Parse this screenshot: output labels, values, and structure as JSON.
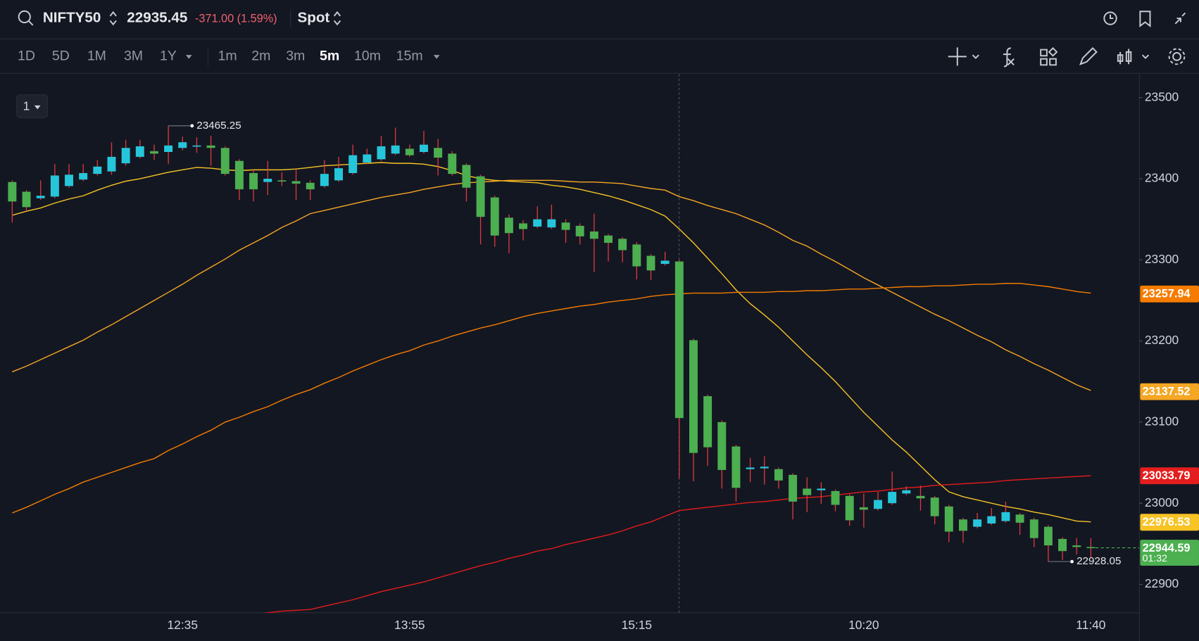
{
  "header": {
    "symbol": "NIFTY50",
    "price": "22935.45",
    "change": "-371.00 (1.59%)",
    "mode": "Spot"
  },
  "toolbar": {
    "ranges": [
      "1D",
      "5D",
      "1M",
      "3M",
      "1Y"
    ],
    "intervals": [
      "1m",
      "2m",
      "3m",
      "5m",
      "10m",
      "15m"
    ],
    "active": "5m"
  },
  "pane_label": "1",
  "chart_data": {
    "type": "candlestick",
    "categories": [
      null,
      null,
      null,
      null,
      null,
      null,
      null,
      null,
      null,
      null,
      null,
      null,
      "12:35",
      null,
      null,
      null,
      null,
      null,
      null,
      null,
      null,
      null,
      null,
      null,
      null,
      null,
      null,
      null,
      "13:55",
      null,
      null,
      null,
      null,
      null,
      null,
      null,
      null,
      null,
      null,
      null,
      null,
      null,
      null,
      null,
      "15:15",
      null,
      null,
      null,
      null,
      null,
      null,
      null,
      null,
      null,
      null,
      null,
      null,
      null,
      null,
      null,
      "10:20",
      null,
      null,
      null,
      null,
      null,
      null,
      null,
      null,
      null,
      null,
      null,
      null,
      null,
      null,
      null,
      "11:40"
    ],
    "ohlc": {
      "open": [
        23396,
        23384,
        23376,
        23378,
        23391,
        23399,
        23406,
        23409,
        23419,
        23427,
        23434,
        23433,
        23438,
        23440,
        23441,
        23438,
        23422,
        23407,
        23396,
        23398,
        23397,
        23395,
        23391,
        23398,
        23407,
        23420,
        23424,
        23431,
        23437,
        23433,
        23438,
        23431,
        23417,
        23403,
        23377,
        23352,
        23345,
        23341,
        23340,
        23346,
        23342,
        23335,
        23330,
        23326,
        23319,
        23305,
        23295,
        23298,
        23201,
        23132,
        23100,
        23070,
        23042,
        23043,
        23042,
        23035,
        23018,
        23016,
        23015,
        23009,
        22995,
        22993,
        23000,
        23012,
        23009,
        23007,
        22996,
        22980,
        22971,
        22975,
        22978,
        22986,
        22980,
        22971,
        22956,
        22948,
        22946
      ],
      "high": [
        23398,
        23386,
        23398,
        23418,
        23418,
        23418,
        23423,
        23445,
        23448,
        23448,
        23442,
        23465.25,
        23452,
        23451,
        23453,
        23440,
        23424,
        23411,
        23422,
        23408,
        23411,
        23398,
        23423,
        23427,
        23442,
        23437,
        23453,
        23463,
        23442,
        23459,
        23449,
        23434,
        23419,
        23405,
        23379,
        23356,
        23349,
        23366,
        23368,
        23350,
        23345,
        23357,
        23332,
        23328,
        23322,
        23307,
        23310,
        23300,
        23203,
        23134,
        23102,
        23072,
        23056,
        23058,
        23044,
        23037,
        23032,
        23026,
        23017,
        23011,
        23012,
        23014,
        23039,
        23021,
        23022,
        23009,
        22998,
        22982,
        22988,
        22994,
        23002,
        22988,
        22982,
        22973,
        22958,
        22957,
        22957
      ],
      "low": [
        23346,
        23360,
        23374,
        23376,
        23389,
        23397,
        23404,
        23405,
        23416,
        23425,
        23423,
        23418,
        23435,
        23432,
        23416,
        23404,
        23374,
        23372,
        23380,
        23391,
        23374,
        23374,
        23389,
        23396,
        23405,
        23418,
        23422,
        23429,
        23427,
        23431,
        23404,
        23404,
        23372,
        23319,
        23316,
        23308,
        23324,
        23339,
        23338,
        23321,
        23319,
        23285,
        23298,
        23297,
        23276,
        23275,
        23293,
        23031,
        23027,
        23046,
        23018,
        23002,
        23026,
        23023,
        23018,
        22980,
        22989,
        22999,
        22990,
        22972,
        22970,
        22991,
        22998,
        23010,
        22991,
        22974,
        22952,
        22951,
        22969,
        22973,
        22976,
        22961,
        22946,
        22928.05,
        22930,
        22937,
        22933
      ],
      "close": [
        23372,
        23365,
        23379,
        23404,
        23405,
        23407,
        23415,
        23427,
        23438,
        23440,
        23431,
        23441,
        23445,
        23441,
        23438,
        23406,
        23387,
        23387,
        23400,
        23397,
        23394,
        23387,
        23406,
        23413,
        23429,
        23430,
        23440,
        23441,
        23429,
        23442,
        23426,
        23406,
        23389,
        23353,
        23330,
        23333,
        23338,
        23350,
        23350,
        23337,
        23329,
        23326,
        23321,
        23312,
        23292,
        23287,
        23299,
        23105,
        23062,
        23069,
        23041,
        23019,
        23044,
        23045,
        23028,
        23002,
        23010,
        23018,
        22998,
        22979,
        22992,
        23004,
        23014,
        23016,
        23006,
        22984,
        22965,
        22966,
        22980,
        22984,
        22989,
        22976,
        22957,
        22948,
        22941,
        22946,
        22945
      ]
    },
    "up_color": "#26c6da",
    "down_color": "#4caf50",
    "wick_color": "#e0393e",
    "series": [
      {
        "color": "#f7c325",
        "values": [
          23355,
          23360,
          23364,
          23370,
          23375,
          23379,
          23386,
          23392,
          23397,
          23400,
          23404,
          23408,
          23411,
          23414,
          23413,
          23411,
          23410,
          23411,
          23411,
          23411,
          23412,
          23414,
          23416,
          23417,
          23418,
          23419,
          23420,
          23419,
          23419,
          23418,
          23415,
          23410,
          23404,
          23400,
          23398,
          23397,
          23396,
          23395,
          23392,
          23390,
          23387,
          23383,
          23379,
          23374,
          23368,
          23362,
          23354,
          23338,
          23321,
          23302,
          23283,
          23263,
          23246,
          23232,
          23217,
          23200,
          23183,
          23167,
          23150,
          23131,
          23112,
          23095,
          23078,
          23063,
          23046,
          23029,
          23014,
          23008,
          23004,
          23000,
          22996,
          22993,
          22989,
          22986,
          22982,
          22978,
          22977
        ]
      },
      {
        "color": "#f5a623",
        "values": [
          23162,
          23169,
          23177,
          23185,
          23193,
          23201,
          23211,
          23220,
          23230,
          23240,
          23250,
          23260,
          23270,
          23281,
          23291,
          23301,
          23312,
          23321,
          23330,
          23340,
          23348,
          23357,
          23361,
          23365,
          23369,
          23373,
          23377,
          23380,
          23383,
          23387,
          23390,
          23393,
          23395,
          23396,
          23397,
          23398,
          23398,
          23398,
          23398,
          23397,
          23396,
          23396,
          23395,
          23394,
          23391,
          23388,
          23386,
          23378,
          23373,
          23367,
          23362,
          23357,
          23350,
          23343,
          23334,
          23324,
          23317,
          23307,
          23298,
          23288,
          23278,
          23269,
          23260,
          23251,
          23242,
          23233,
          23225,
          23216,
          23207,
          23199,
          23189,
          23181,
          23172,
          23164,
          23155,
          23146,
          23139
        ]
      },
      {
        "color": "#f57c00",
        "values": [
          22988,
          22995,
          23003,
          23011,
          23018,
          23026,
          23032,
          23038,
          23044,
          23050,
          23055,
          23065,
          23073,
          23082,
          23090,
          23100,
          23106,
          23113,
          23119,
          23127,
          23134,
          23140,
          23148,
          23155,
          23163,
          23170,
          23177,
          23183,
          23188,
          23195,
          23200,
          23206,
          23211,
          23216,
          23220,
          23225,
          23230,
          23234,
          23237,
          23240,
          23243,
          23245,
          23248,
          23250,
          23252,
          23255,
          23257,
          23258,
          23259,
          23259,
          23259,
          23260,
          23260,
          23260,
          23261,
          23261,
          23262,
          23262,
          23263,
          23264,
          23264,
          23265,
          23266,
          23267,
          23267,
          23268,
          23268,
          23269,
          23270,
          23270,
          23271,
          23271,
          23269,
          23267,
          23264,
          23261,
          23259
        ]
      },
      {
        "color": "#e31b1b",
        "values": [
          null,
          null,
          null,
          null,
          null,
          null,
          null,
          null,
          null,
          null,
          null,
          null,
          null,
          null,
          null,
          null,
          null,
          22863,
          22865,
          22867,
          22868,
          22869,
          22873,
          22877,
          22881,
          22886,
          22891,
          22895,
          22899,
          22903,
          22908,
          22913,
          22918,
          22923,
          22927,
          22932,
          22936,
          22941,
          22944,
          22949,
          22953,
          22957,
          22961,
          22966,
          22972,
          22977,
          22984,
          22991,
          22993,
          22995,
          22997,
          22999,
          23001,
          23002,
          23004,
          23006,
          23007,
          23008,
          23010,
          23012,
          23014,
          23015,
          23017,
          23019,
          23020,
          23022,
          23023,
          23024,
          23025,
          23026,
          23028,
          23029,
          23030,
          23031,
          23032,
          23033,
          23034
        ]
      }
    ],
    "ylim": [
      22865,
      23529
    ],
    "yticks": [
      22900,
      23000,
      23100,
      23200,
      23300,
      23400,
      23500
    ],
    "grid": false,
    "price_tags": [
      {
        "value": 23257.94,
        "color": "#f57c00"
      },
      {
        "value": 23137.52,
        "color": "#f5a623"
      },
      {
        "value": 23033.79,
        "color": "#e41e1e"
      },
      {
        "value": 22976.53,
        "color": "#f7c325"
      },
      {
        "value": 22944.59,
        "color": "#4caf50",
        "countdown": "01:32"
      }
    ]
  }
}
